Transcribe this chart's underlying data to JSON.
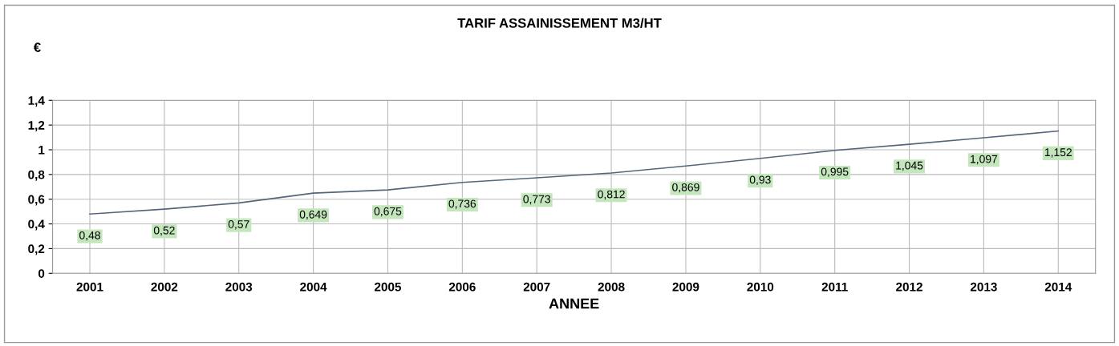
{
  "chart_data": {
    "type": "line",
    "title": "TARIF ASSAINISSEMENT M3/HT",
    "xlabel": "ANNEE",
    "ylabel": "€",
    "categories": [
      "2001",
      "2002",
      "2003",
      "2004",
      "2005",
      "2006",
      "2007",
      "2008",
      "2009",
      "2010",
      "2011",
      "2012",
      "2013",
      "2014"
    ],
    "series": [
      {
        "color": "#56657a",
        "values": [
          0.48,
          0.52,
          0.57,
          0.649,
          0.675,
          0.736,
          0.773,
          0.812,
          0.869,
          0.93,
          0.995,
          1.045,
          1.097,
          1.152
        ],
        "value_labels": [
          "0,48",
          "0,52",
          "0,57",
          "0,649",
          "0,675",
          "0,736",
          "0,773",
          "0,812",
          "0,869",
          "0,93",
          "0,995",
          "1,045",
          "1,097",
          "1,152"
        ]
      }
    ],
    "ylim": [
      0,
      1.4
    ],
    "yticks": [
      0,
      {
        "value": 0.2,
        "label": "0,2"
      },
      {
        "value": 0.4,
        "label": "0,4"
      },
      {
        "value": 0.6,
        "label": "0,6"
      },
      {
        "value": 0.8,
        "label": "0,8"
      },
      1,
      {
        "value": 1.2,
        "label": "1,2"
      },
      {
        "value": 1.4,
        "label": "1,4"
      }
    ],
    "grid": true,
    "legend": false,
    "marker": "none",
    "line_style": "solid"
  }
}
